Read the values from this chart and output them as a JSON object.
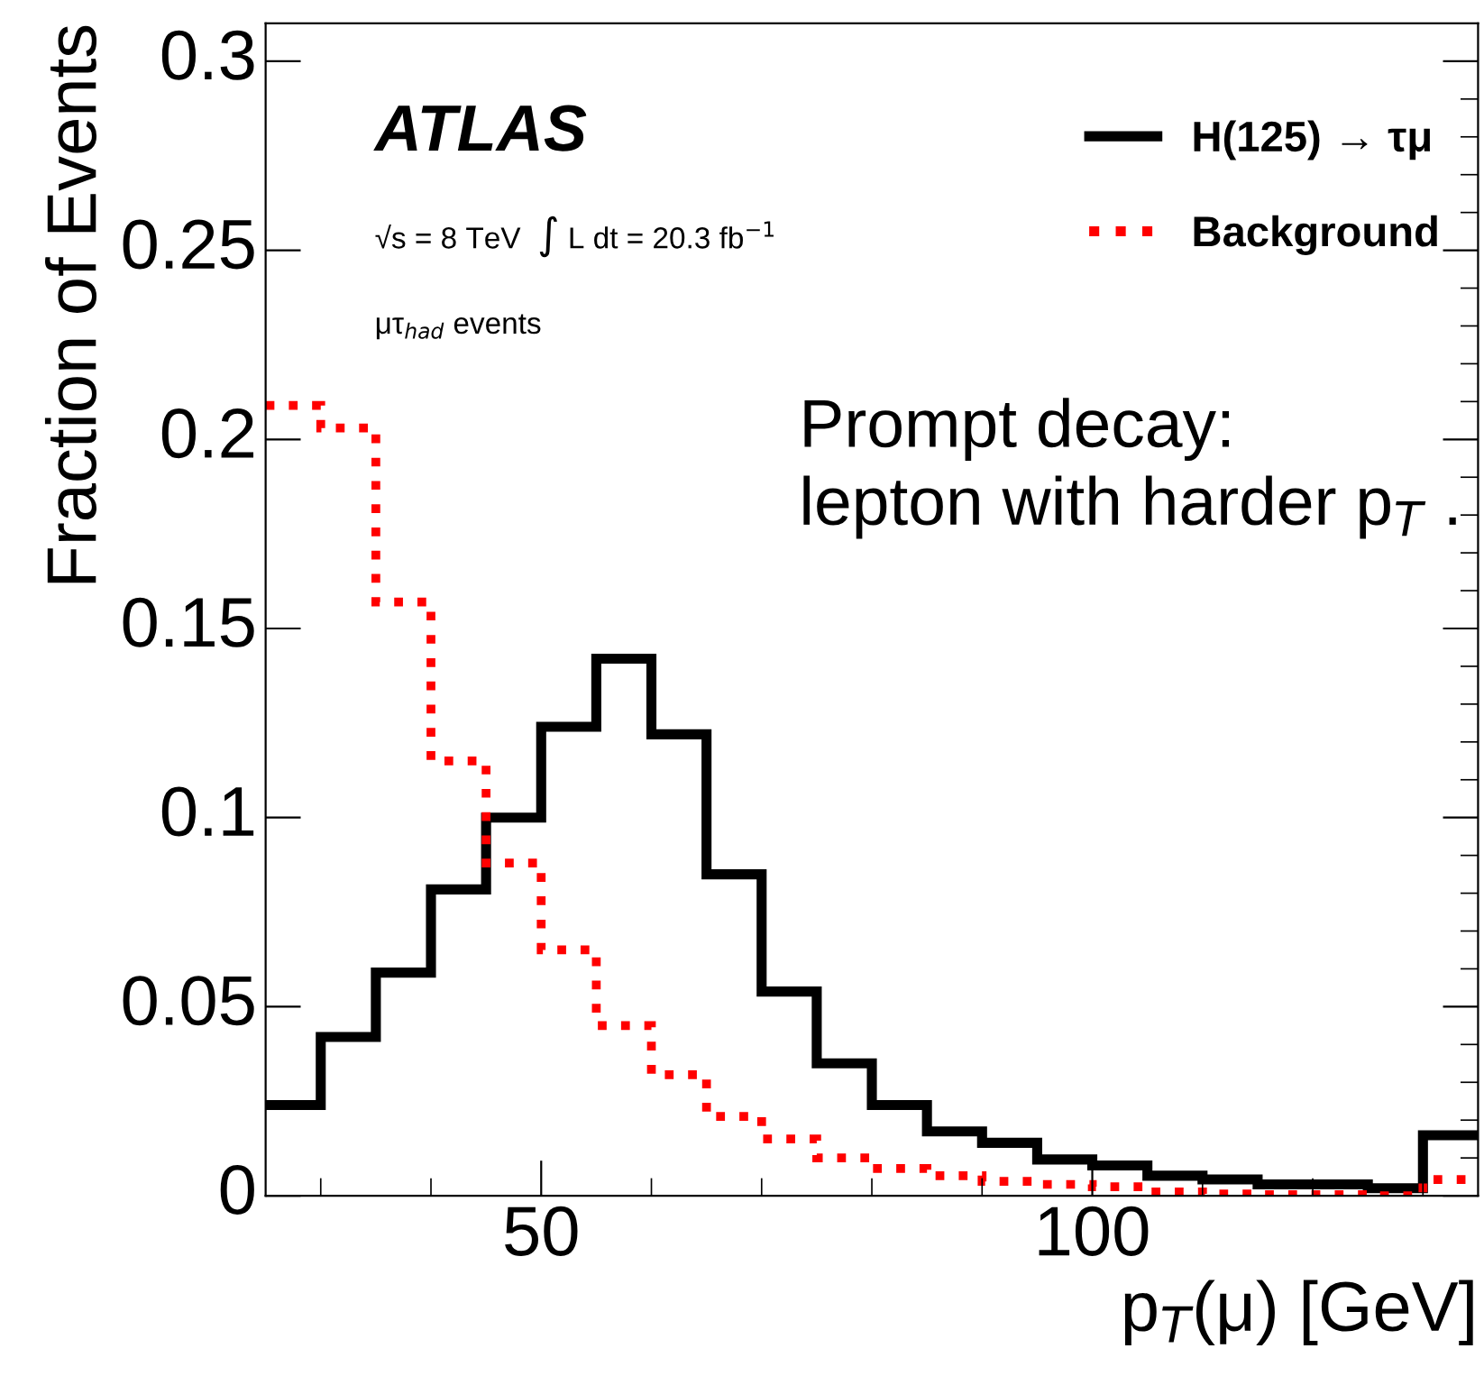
{
  "chart_data": {
    "type": "histogram",
    "xlabel": "p$_{T}$(μ) [GeV]",
    "ylabel": "Fraction of Events",
    "bins": [
      25,
      30,
      35,
      40,
      45,
      50,
      55,
      60,
      65,
      70,
      75,
      80,
      85,
      90,
      95,
      100,
      105,
      110,
      115,
      120,
      125,
      130,
      135
    ],
    "series": [
      {
        "name": "H(125) → τμ",
        "color": "#000000",
        "line_style": "solid",
        "values": [
          0.024,
          0.042,
          0.059,
          0.081,
          0.1,
          0.124,
          0.142,
          0.122,
          0.085,
          0.054,
          0.035,
          0.024,
          0.017,
          0.014,
          0.0096,
          0.008,
          0.0053,
          0.0043,
          0.003,
          0.003,
          0.002,
          0.016
        ]
      },
      {
        "name": "Background",
        "color": "#ff0000",
        "line_style": "dotted",
        "values": [
          0.209,
          0.203,
          0.157,
          0.115,
          0.088,
          0.065,
          0.045,
          0.032,
          0.021,
          0.015,
          0.01,
          0.0072,
          0.0053,
          0.0038,
          0.003,
          0.0024,
          0.001,
          0.0005,
          0.0003,
          0.0003,
          0.0,
          0.0043
        ]
      }
    ],
    "xlim": [
      25,
      135
    ],
    "xticks": [
      50,
      100
    ],
    "ylim": [
      0,
      0.31
    ],
    "yticks": [
      0,
      0.05,
      0.1,
      0.15,
      0.2,
      0.25,
      0.3
    ],
    "grid": false,
    "legend": "top right",
    "annotations": [
      "ATLAS",
      "√s = 8 TeV  ∫ L dt = 20.3 fb$^{−1}$",
      "μτ$_{had}$ events",
      "Prompt decay:\nlepton with harder p$_{T}$ ."
    ]
  }
}
